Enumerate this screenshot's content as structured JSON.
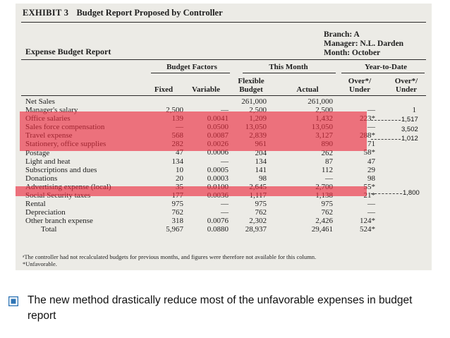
{
  "exhibit": {
    "label": "EXHIBIT 3",
    "title": "Budget Report Proposed by Controller"
  },
  "branch_info": {
    "branch": "Branch: A",
    "manager": "Manager: N.L. Darden",
    "month": "Month: October"
  },
  "report_title": "Expense Budget Report",
  "headers": {
    "budget_factors": "Budget Factors",
    "this_month": "This Month",
    "year_to_date": "Year-to-Date",
    "fixed": "Fixed",
    "variable": "Variable",
    "flexible_budget": "Flexible\nBudget",
    "actual": "Actual",
    "over_under_a": "Over*/\nUnder",
    "over_under_b": "Over*/\nUnder"
  },
  "rows": [
    {
      "name": "Net Sales",
      "fixed": "",
      "variable": "",
      "flexible": "261,000",
      "actual": "261,000",
      "ytd1": "",
      "ytd2": ""
    },
    {
      "name": "Manager's salary",
      "fixed": "2,500",
      "variable": "—",
      "flexible": "2,500",
      "actual": "2,500",
      "ytd1": "—",
      "ytd2": "1"
    },
    {
      "name": "Office salaries",
      "fixed": "139",
      "variable": "0.0041",
      "flexible": "1,209",
      "actual": "1,432",
      "ytd1": "223*",
      "ytd2": ""
    },
    {
      "name": "Sales force compensation",
      "fixed": "—",
      "variable": "0.0500",
      "flexible": "13,050",
      "actual": "13,050",
      "ytd1": "—",
      "ytd2": ""
    },
    {
      "name": "Travel expense",
      "fixed": "568",
      "variable": "0.0087",
      "flexible": "2,839",
      "actual": "3,127",
      "ytd1": "288*",
      "ytd2": ""
    },
    {
      "name": "Stationery, office supplies",
      "fixed": "282",
      "variable": "0.0026",
      "flexible": "961",
      "actual": "890",
      "ytd1": "71",
      "ytd2": ""
    },
    {
      "name": "Postage",
      "fixed": "47",
      "variable": "0.0006",
      "flexible": "204",
      "actual": "262",
      "ytd1": "58*",
      "ytd2": ""
    },
    {
      "name": "Light and heat",
      "fixed": "134",
      "variable": "—",
      "flexible": "134",
      "actual": "87",
      "ytd1": "47",
      "ytd2": ""
    },
    {
      "name": "Subscriptions and dues",
      "fixed": "10",
      "variable": "0.0005",
      "flexible": "141",
      "actual": "112",
      "ytd1": "29",
      "ytd2": ""
    },
    {
      "name": "Donations",
      "fixed": "20",
      "variable": "0.0003",
      "flexible": "98",
      "actual": "—",
      "ytd1": "98",
      "ytd2": ""
    },
    {
      "name": "Advertising expense (local)",
      "fixed": "35",
      "variable": "0.0100",
      "flexible": "2,645",
      "actual": "2,700",
      "ytd1": "55*",
      "ytd2": ""
    },
    {
      "name": "Social Security taxes",
      "fixed": "177",
      "variable": "0.0036",
      "flexible": "1,117",
      "actual": "1,138",
      "ytd1": "21*",
      "ytd2": ""
    },
    {
      "name": "Rental",
      "fixed": "975",
      "variable": "—",
      "flexible": "975",
      "actual": "975",
      "ytd1": "—",
      "ytd2": ""
    },
    {
      "name": "Depreciation",
      "fixed": "762",
      "variable": "—",
      "flexible": "762",
      "actual": "762",
      "ytd1": "—",
      "ytd2": ""
    },
    {
      "name": "Other branch expense",
      "fixed": "318",
      "variable": "0.0076",
      "flexible": "2,302",
      "actual": "2,426",
      "ytd1": "124*",
      "ytd2": ""
    },
    {
      "name": "Total",
      "fixed": "5,967",
      "variable": "0.0880",
      "flexible": "28,937",
      "actual": "29,461",
      "ytd1": "524*",
      "ytd2": ""
    }
  ],
  "footnotes": [
    "ᵃThe controller had not recalculated budgets for previous months, and figures were therefore not available for this column.",
    "*Unfavorable."
  ],
  "annotations": [
    "1,517",
    "3,502",
    "1,012",
    "1,800"
  ],
  "highlight_color": "#ec263a",
  "bullet": {
    "icon": "square-bullet-icon",
    "color": "#2e74b5",
    "text": "The new method drastically reduce most of the unfavorable expenses in budget report"
  }
}
